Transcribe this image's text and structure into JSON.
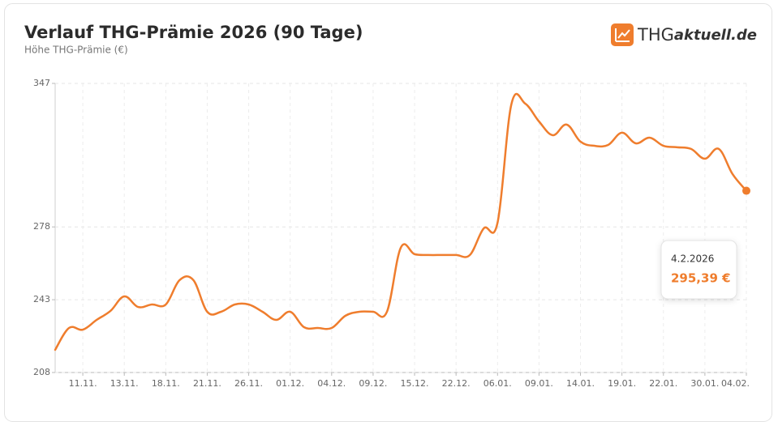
{
  "chart_data": {
    "type": "line",
    "title": "Verlauf THG-Prämie 2026 (90 Tage)",
    "subtitle": "Höhe THG-Prämie (€)",
    "brand": "THG",
    "brand_suffix": "aktuell.de",
    "categories": [
      null,
      null,
      "11.11.",
      null,
      null,
      "13.11.",
      null,
      null,
      "18.11.",
      null,
      null,
      "21.11.",
      null,
      null,
      "26.11.",
      null,
      null,
      "01.12.",
      null,
      null,
      "04.12.",
      null,
      null,
      "09.12.",
      null,
      null,
      "15.12.",
      null,
      null,
      "22.12.",
      null,
      null,
      "06.01.",
      null,
      null,
      "09.01.",
      null,
      null,
      "14.01.",
      null,
      null,
      "19.01.",
      null,
      null,
      "22.01.",
      null,
      null,
      "30.01.",
      null,
      null,
      "04.02."
    ],
    "series": [
      {
        "name": "THG-Prämie",
        "color": "#ef7d2d",
        "values": [
          218.9,
          229.4,
          228.6,
          233.3,
          237.6,
          244.6,
          239.5,
          240.7,
          240.7,
          252.4,
          252.4,
          237.2,
          237.2,
          240.7,
          240.7,
          237.2,
          233.3,
          237.2,
          229.8,
          229.4,
          229.4,
          235.3,
          237.2,
          237.2,
          237.2,
          268.0,
          264.9,
          264.5,
          264.5,
          264.5,
          264.5,
          277.3,
          280.0,
          336.9,
          337.3,
          328.7,
          322.1,
          327.2,
          319.0,
          317.0,
          317.4,
          323.3,
          318.2,
          320.9,
          317.0,
          316.3,
          315.5,
          310.8,
          315.5,
          303.4,
          295.39
        ]
      }
    ],
    "ylim": [
      208,
      347
    ],
    "yticks": [
      208,
      243,
      278,
      347
    ],
    "grid": true,
    "tooltip": {
      "title": "4.2.2026",
      "value_label": "295,39 €"
    }
  }
}
